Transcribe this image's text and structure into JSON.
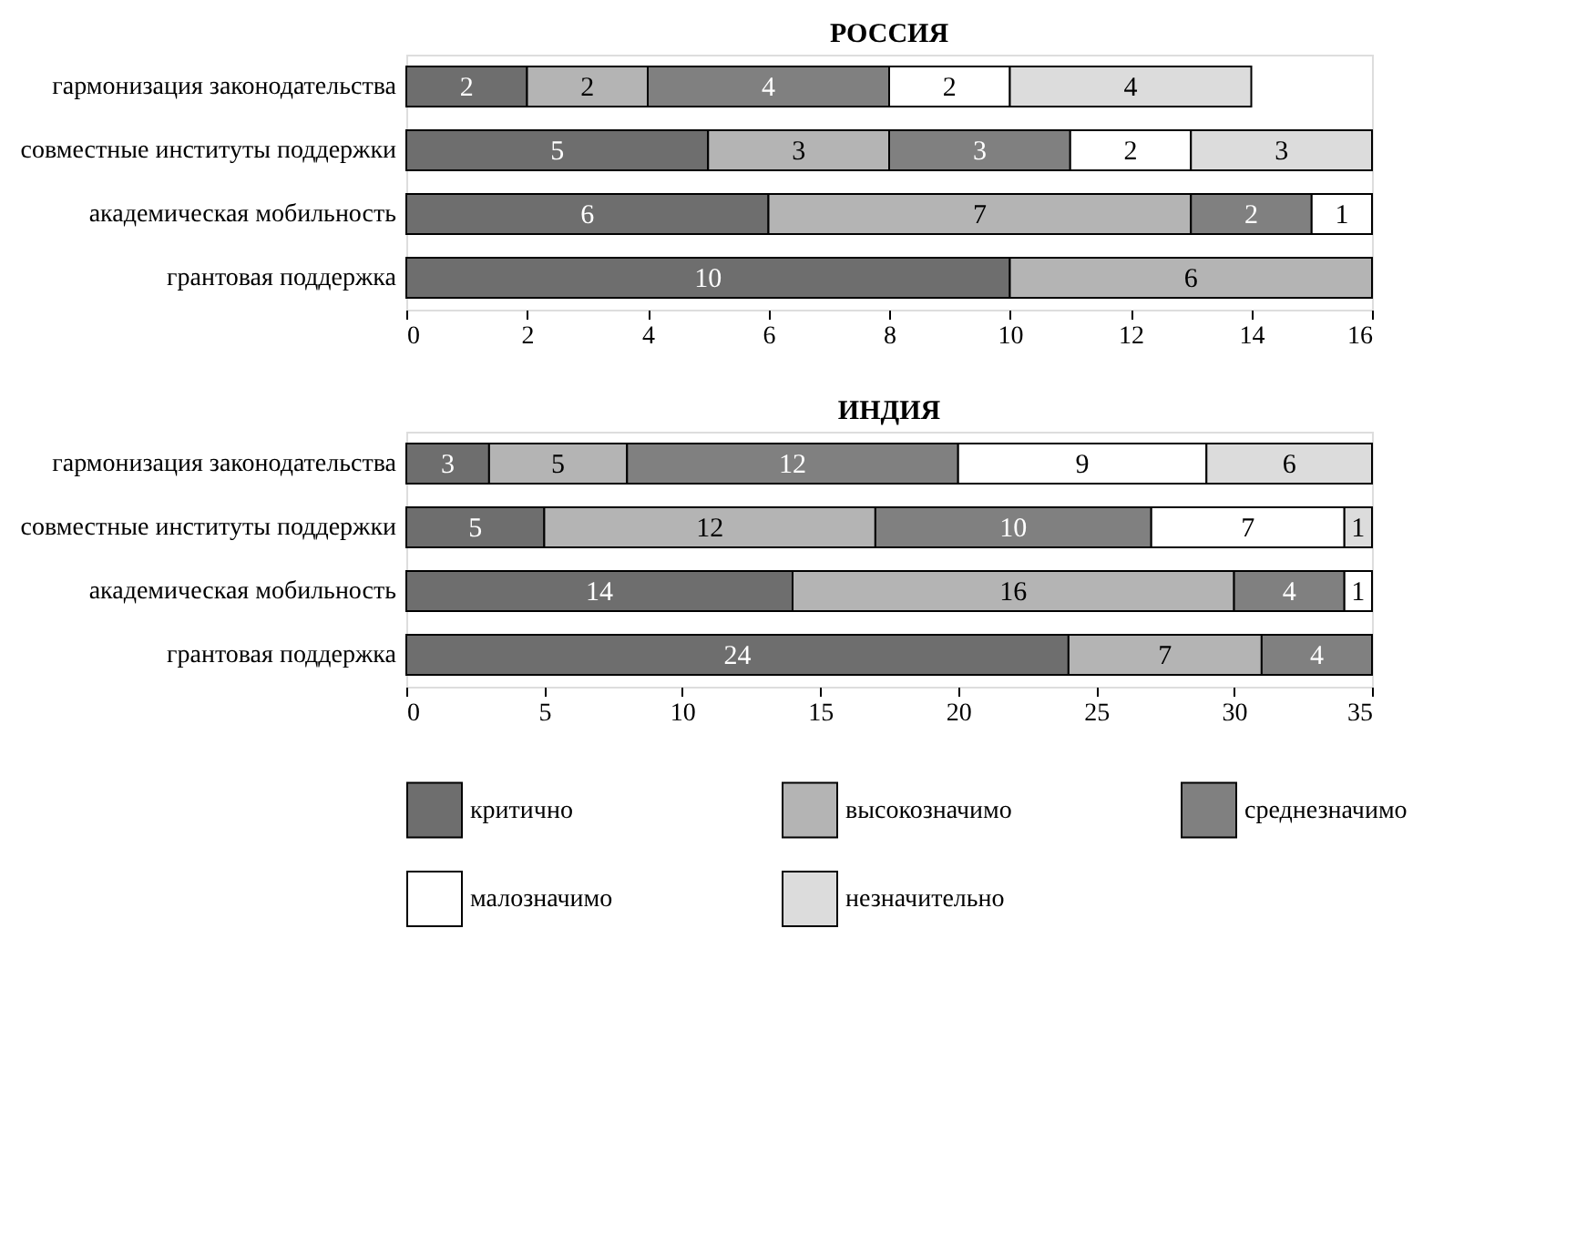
{
  "chart_data": [
    {
      "type": "bar",
      "title": "РОССИЯ",
      "orientation": "horizontal",
      "stacked": true,
      "legend": "bottom",
      "grid": false,
      "data_labels": true,
      "categories": [
        "гармонизация законодательства",
        "совместные институты поддержки",
        "академическая мобильность",
        "грантовая поддержка"
      ],
      "xlim": [
        0,
        16
      ],
      "xticks": [
        0,
        2,
        4,
        6,
        8,
        10,
        12,
        14,
        16
      ],
      "series": [
        {
          "name": "критично",
          "color": "#6e6e6e",
          "values": [
            2,
            5,
            6,
            10
          ]
        },
        {
          "name": "высокозначимо",
          "color": "#b4b4b4",
          "values": [
            2,
            3,
            7,
            6
          ]
        },
        {
          "name": "среднезначимо",
          "color": "#808080",
          "values": [
            4,
            3,
            2,
            null
          ]
        },
        {
          "name": "малозначимо",
          "color": "#ffffff",
          "values": [
            2,
            2,
            1,
            null
          ]
        },
        {
          "name": "незначительно",
          "color": "#dcdcdc",
          "values": [
            4,
            3,
            null,
            null
          ]
        }
      ]
    },
    {
      "type": "bar",
      "title": "ИНДИЯ",
      "orientation": "horizontal",
      "stacked": true,
      "legend": "bottom",
      "grid": false,
      "data_labels": true,
      "categories": [
        "гармонизация законодательства",
        "совместные институты поддержки",
        "академическая мобильность",
        "грантовая поддержка"
      ],
      "xlim": [
        0,
        35
      ],
      "xticks": [
        0,
        5,
        10,
        15,
        20,
        25,
        30,
        35
      ],
      "series": [
        {
          "name": "критично",
          "color": "#6e6e6e",
          "values": [
            3,
            5,
            14,
            24
          ]
        },
        {
          "name": "высокозначимо",
          "color": "#b4b4b4",
          "values": [
            5,
            12,
            16,
            7
          ]
        },
        {
          "name": "среднезначимо",
          "color": "#808080",
          "values": [
            12,
            10,
            4,
            4
          ]
        },
        {
          "name": "малозначимо",
          "color": "#ffffff",
          "values": [
            9,
            7,
            1,
            null
          ]
        },
        {
          "name": "незначительно",
          "color": "#dcdcdc",
          "values": [
            6,
            1,
            null,
            null
          ]
        }
      ]
    }
  ]
}
